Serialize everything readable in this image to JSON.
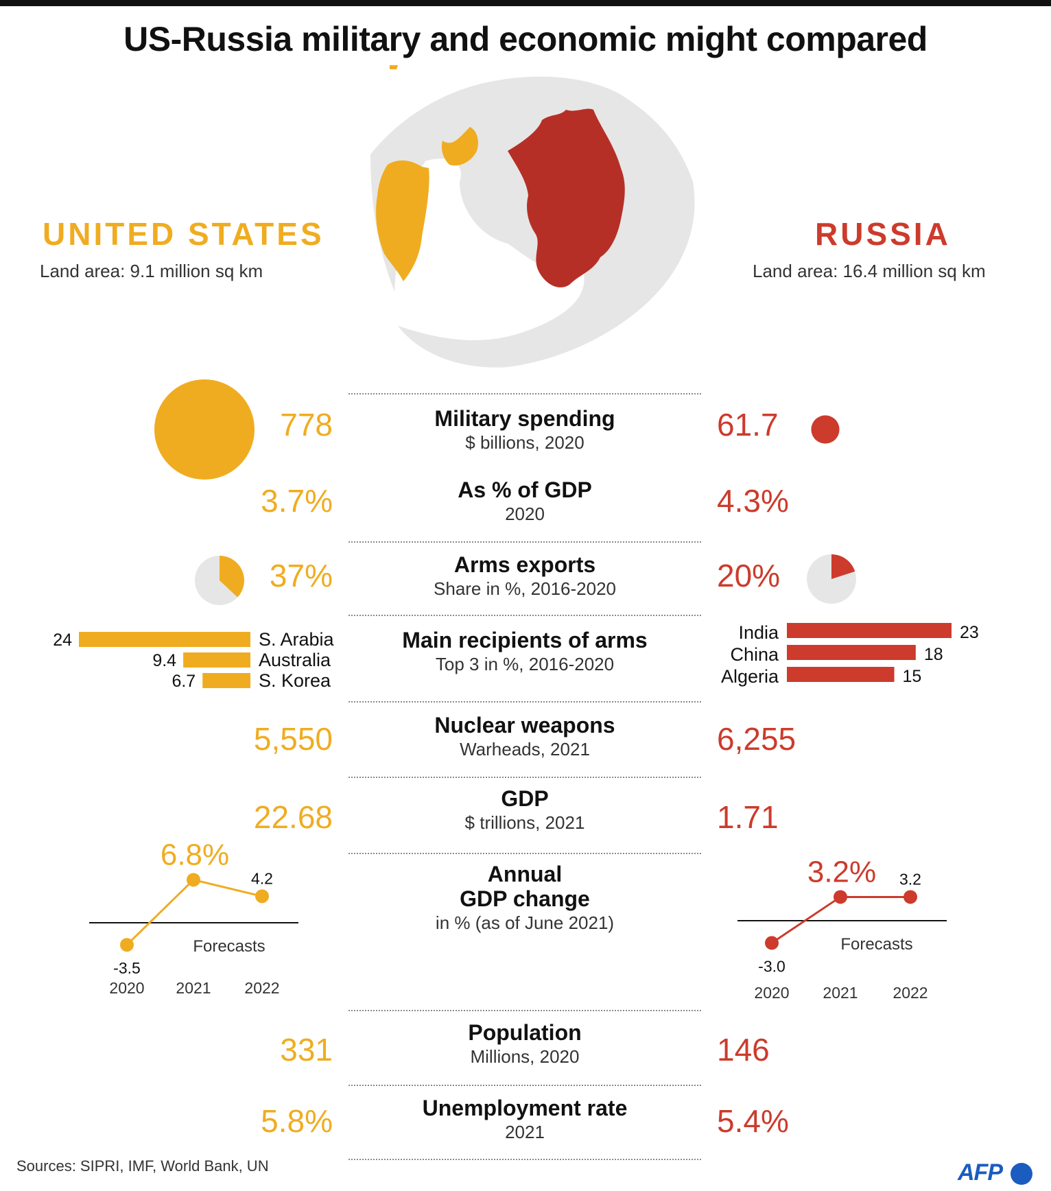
{
  "title": "US-Russia military and economic might compared",
  "colors": {
    "us": "#f0ac20",
    "russia": "#cc3b2c",
    "land": "#e6e6e6"
  },
  "us": {
    "name": "UNITED STATES",
    "land_area": "Land area: 9.1 million sq km"
  },
  "russia": {
    "name": "RUSSIA",
    "land_area": "Land area: 16.4 million sq km"
  },
  "rows": {
    "military_spending": {
      "heading": "Military spending",
      "sub": "$ billions, 2020",
      "us": "778",
      "russia": "61.7"
    },
    "pct_gdp": {
      "heading": "As % of GDP",
      "sub": "2020",
      "us": "3.7%",
      "russia": "4.3%"
    },
    "arms_exports": {
      "heading": "Arms exports",
      "sub": "Share in %, 2016-2020",
      "us": "37%",
      "russia": "20%"
    },
    "recipients": {
      "heading": "Main recipients of arms",
      "sub": "Top 3 in %, 2016-2020"
    },
    "nuclear": {
      "heading": "Nuclear weapons",
      "sub": "Warheads, 2021",
      "us": "5,550",
      "russia": "6,255"
    },
    "gdp": {
      "heading": "GDP",
      "sub": "$ trillions, 2021",
      "us": "22.68",
      "russia": "1.71"
    },
    "gdp_change": {
      "heading1": "Annual",
      "heading2": "GDP change",
      "sub": "in % (as of June 2021)"
    },
    "population": {
      "heading": "Population",
      "sub": "Millions, 2020",
      "us": "331",
      "russia": "146"
    },
    "unemployment": {
      "heading": "Unemployment rate",
      "sub": "2021",
      "us": "5.8%",
      "russia": "5.4%"
    }
  },
  "chart_data": [
    {
      "type": "bubble",
      "title": "Military spending",
      "series": [
        {
          "name": "UNITED STATES",
          "values": [
            778
          ]
        },
        {
          "name": "RUSSIA",
          "values": [
            61.7
          ]
        }
      ]
    },
    {
      "type": "pie",
      "title": "Arms exports",
      "series": [
        {
          "name": "UNITED STATES",
          "values": [
            37
          ]
        },
        {
          "name": "RUSSIA",
          "values": [
            20
          ]
        }
      ]
    },
    {
      "type": "bar",
      "title": "Main recipients of arms",
      "series": [
        {
          "name": "UNITED STATES",
          "categories": [
            "S. Arabia",
            "Australia",
            "S. Korea"
          ],
          "values": [
            24,
            9.4,
            6.7
          ],
          "labels": [
            "24",
            "9.4",
            "6.7"
          ]
        },
        {
          "name": "RUSSIA",
          "categories": [
            "India",
            "China",
            "Algeria"
          ],
          "values": [
            23,
            18,
            15
          ],
          "labels": [
            "23",
            "18",
            "15"
          ]
        }
      ]
    },
    {
      "type": "line",
      "title": "Annual GDP change",
      "x": [
        "2020",
        "2021",
        "2022"
      ],
      "annotation": "Forecasts",
      "series": [
        {
          "name": "UNITED STATES",
          "values": [
            -3.5,
            6.8,
            4.2
          ],
          "labels": [
            "-3.5",
            "6.8%",
            "4.2"
          ]
        },
        {
          "name": "RUSSIA",
          "values": [
            -3.0,
            3.2,
            3.2
          ],
          "labels": [
            "-3.0",
            "3.2%",
            "3.2"
          ]
        }
      ]
    }
  ],
  "footer": {
    "sources": "Sources: SIPRI, IMF, World Bank, UN",
    "logo": "AFP"
  }
}
